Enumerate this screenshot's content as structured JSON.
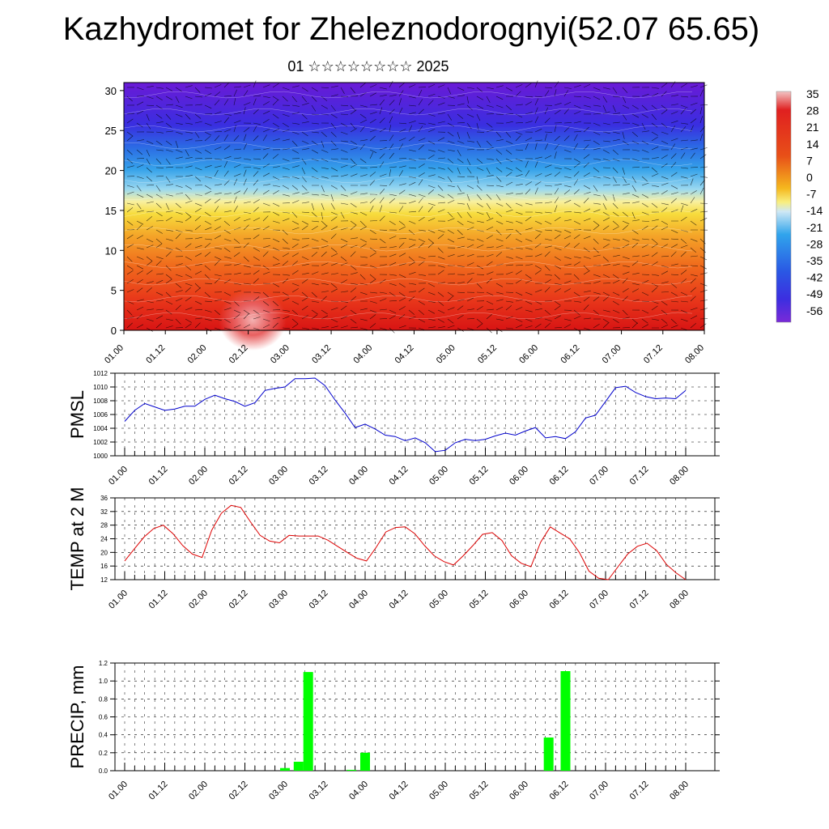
{
  "title": "Kazhydromet for Zheleznodorognyi(52.07 65.65)",
  "subtitle": "01 ☆☆☆☆☆☆☆☆ 2025",
  "time_labels": [
    "01.00",
    "01.12",
    "02.00",
    "02.12",
    "03.00",
    "03.12",
    "04.00",
    "04.12",
    "05.00",
    "05.12",
    "06.00",
    "06.12",
    "07.00",
    "07.12",
    "08.00"
  ],
  "chart_data": [
    {
      "type": "heatmap",
      "name": "cross-section",
      "x_ticks": [
        "01.00",
        "01.12",
        "02.00",
        "02.12",
        "03.00",
        "03.12",
        "04.00",
        "04.12",
        "05.00",
        "05.12",
        "06.00",
        "06.12",
        "07.00",
        "07.12",
        "08.00"
      ],
      "y_ticks": [
        0,
        5,
        10,
        15,
        20,
        25,
        30
      ],
      "ylim": [
        0,
        31
      ],
      "colorbar_labels": [
        "35",
        "28",
        "21",
        "14",
        "7",
        "0",
        "-7",
        "-14",
        "-21",
        "-28",
        "-35",
        "-42",
        "-49",
        "-56"
      ],
      "colors": {
        "hot": "#e0201a",
        "warm": "#f08a1a",
        "yellow": "#f5e63a",
        "cold": "#32a8e6",
        "blue": "#2a40e0",
        "purple": "#7a1ad8"
      }
    },
    {
      "type": "line",
      "name": "PMSL",
      "ylabel": "PMSL",
      "ylim": [
        1000,
        1012
      ],
      "y_ticks": [
        1000,
        1002,
        1004,
        1006,
        1008,
        1010,
        1012
      ],
      "color": "#0000cc",
      "values": [
        1005.0,
        1006.6,
        1007.6,
        1007.1,
        1006.6,
        1006.8,
        1007.2,
        1007.2,
        1008.2,
        1008.8,
        1008.3,
        1007.9,
        1007.2,
        1007.7,
        1009.5,
        1009.8,
        1010.0,
        1011.2,
        1011.2,
        1011.3,
        1010.2,
        1008.1,
        1006.2,
        1004.1,
        1004.6,
        1003.9,
        1003.0,
        1002.8,
        1002.2,
        1002.6,
        1001.9,
        1000.6,
        1000.8,
        1001.9,
        1002.4,
        1002.2,
        1002.4,
        1002.9,
        1003.3,
        1003.0,
        1003.6,
        1004.1,
        1002.6,
        1002.8,
        1002.5,
        1003.5,
        1005.5,
        1005.9,
        1007.9,
        1009.9,
        1010.1,
        1009.2,
        1008.6,
        1008.3,
        1008.4,
        1008.3,
        1009.5
      ]
    },
    {
      "type": "line",
      "name": "TEMP at 2 M",
      "ylabel": "TEMP at 2 M",
      "ylim": [
        12,
        36
      ],
      "y_ticks": [
        12,
        16,
        20,
        24,
        28,
        32,
        36
      ],
      "color": "#dd0000",
      "values": [
        17.5,
        21.0,
        24.5,
        27.0,
        28.0,
        25.5,
        22.0,
        19.5,
        18.5,
        26.5,
        31.5,
        33.8,
        33.2,
        29.0,
        25.0,
        23.3,
        22.8,
        25.0,
        24.8,
        24.8,
        24.8,
        23.6,
        21.8,
        20.0,
        18.3,
        17.5,
        21.5,
        26.0,
        27.3,
        27.5,
        25.5,
        22.0,
        19.0,
        17.3,
        16.3,
        19.0,
        22.0,
        25.3,
        25.8,
        23.5,
        19.0,
        16.8,
        15.8,
        23.0,
        27.5,
        25.7,
        24.0,
        20.0,
        14.5,
        12.4,
        12.0,
        15.8,
        19.5,
        21.8,
        22.7,
        20.5,
        16.5,
        14.0,
        12.0
      ]
    },
    {
      "type": "bar",
      "name": "PRECIP, mm",
      "ylabel": "PRECIP, mm",
      "ylim": [
        0,
        1.2
      ],
      "y_ticks": [
        "0.0",
        "0.2",
        "0.4",
        "0.6",
        "0.8",
        "1.0",
        "1.2"
      ],
      "color": "#00ff00",
      "bars": [
        {
          "x": 3.0,
          "value": 0.03
        },
        {
          "x": 3.17,
          "value": 0.1
        },
        {
          "x": 3.29,
          "value": 1.1
        },
        {
          "x": 3.83,
          "value": 0.01
        },
        {
          "x": 4.0,
          "value": 0.2
        },
        {
          "x": 6.29,
          "value": 0.37
        },
        {
          "x": 6.5,
          "value": 1.11
        }
      ]
    }
  ]
}
